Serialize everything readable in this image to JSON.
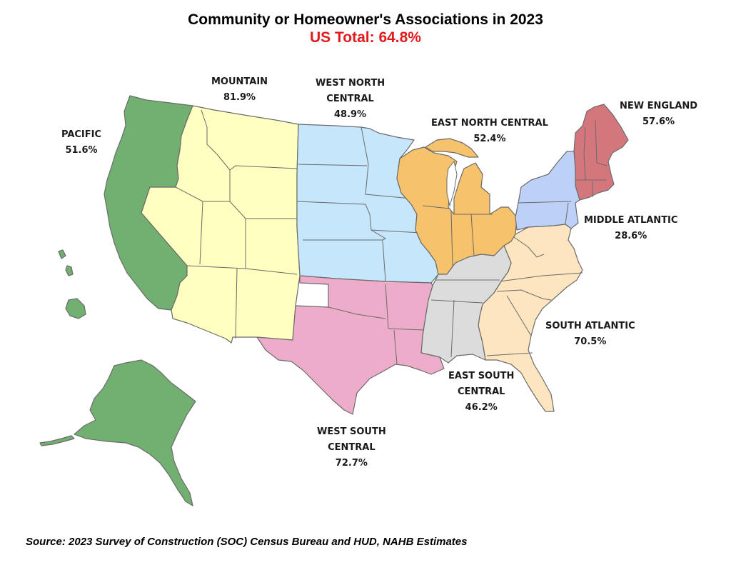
{
  "title": "Community or Homeowner's Associations in 2023",
  "subtitle": "US Total: 64.8%",
  "source": "Source: 2023 Survey of Construction (SOC) Census Bureau and HUD, NAHB Estimates",
  "regions": {
    "pacific": {
      "name": "PACIFIC",
      "value": "51.6%",
      "color": "#72b071"
    },
    "mountain": {
      "name": "MOUNTAIN",
      "value": "81.9%",
      "color": "#ffffc0"
    },
    "west_north_central": {
      "name_line1": "WEST NORTH",
      "name_line2": "CENTRAL",
      "value": "48.9%",
      "color": "#c5e6fb"
    },
    "east_north_central": {
      "name": "EAST NORTH CENTRAL",
      "value": "52.4%",
      "color": "#f6c26b"
    },
    "new_england": {
      "name": "NEW ENGLAND",
      "value": "57.6%",
      "color": "#d4777d"
    },
    "middle_atlantic": {
      "name": "MIDDLE ATLANTIC",
      "value": "28.6%",
      "color": "#bdd0f7"
    },
    "south_atlantic": {
      "name": "SOUTH ATLANTIC",
      "value": "70.5%",
      "color": "#fde5bf"
    },
    "east_south_central": {
      "name_line1": "EAST SOUTH",
      "name_line2": "CENTRAL",
      "value": "46.2%",
      "color": "#dcdcdc"
    },
    "west_south_central": {
      "name_line1": "WEST SOUTH",
      "name_line2": "CENTRAL",
      "value": "72.7%",
      "color": "#eeaccb"
    }
  }
}
